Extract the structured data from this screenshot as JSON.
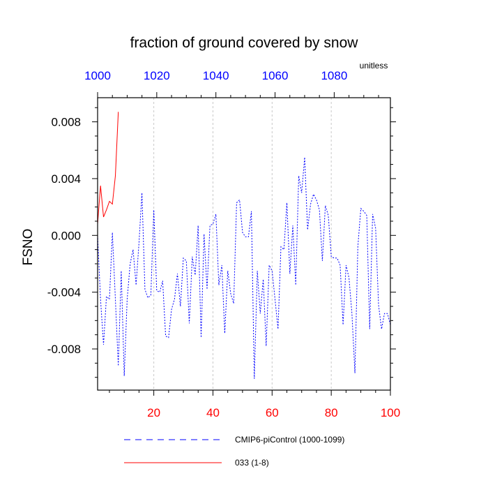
{
  "chart_data": {
    "type": "line",
    "title": "fraction of ground covered by snow",
    "units_label": "unitless",
    "ylabel": "FSNO",
    "xlabel": "",
    "x_bottom": {
      "range": [
        1,
        100
      ],
      "ticks": [
        20,
        40,
        60,
        80,
        100
      ],
      "tick_labels": [
        "20",
        "40",
        "60",
        "80",
        "100"
      ],
      "color": "#ff0000"
    },
    "x_top": {
      "range": [
        1000,
        1099
      ],
      "ticks": [
        1000,
        1020,
        1040,
        1060,
        1080
      ],
      "tick_labels": [
        "1000",
        "1020",
        "1040",
        "1060",
        "1080"
      ],
      "color": "#0000ff"
    },
    "y": {
      "range": [
        -0.0109,
        0.0097
      ],
      "ticks": [
        -0.008,
        -0.004,
        0.0,
        0.004,
        0.008
      ],
      "tick_labels": [
        "-0.008",
        "-0.004",
        "0.000",
        "0.004",
        "0.008"
      ]
    },
    "grid": "vertical dashed at bottom ticks",
    "legend_position": "bottom",
    "series": [
      {
        "name": "CMIP6-piControl (1000-1099)",
        "color": "#0000ff",
        "style": "dashed",
        "x": [
          1,
          2,
          3,
          4,
          5,
          6,
          7,
          8,
          9,
          10,
          11,
          12,
          13,
          14,
          15,
          16,
          17,
          18,
          19,
          20,
          21,
          22,
          23,
          24,
          25,
          26,
          27,
          28,
          29,
          30,
          31,
          32,
          33,
          34,
          35,
          36,
          37,
          38,
          39,
          40,
          41,
          42,
          43,
          44,
          45,
          46,
          47,
          48,
          49,
          50,
          51,
          52,
          53,
          54,
          55,
          56,
          57,
          58,
          59,
          60,
          61,
          62,
          63,
          64,
          65,
          66,
          67,
          68,
          69,
          70,
          71,
          72,
          73,
          74,
          75,
          76,
          77,
          78,
          79,
          80,
          81,
          82,
          83,
          84,
          85,
          86,
          87,
          88,
          89,
          90,
          91,
          92,
          93,
          94,
          95,
          96,
          97,
          98,
          99,
          100
        ],
        "values": [
          0.0,
          -0.0045,
          -0.0077,
          -0.0043,
          -0.0045,
          0.0002,
          -0.0045,
          -0.0092,
          -0.0025,
          -0.0099,
          -0.0045,
          -0.002,
          -0.001,
          -0.0035,
          -0.0005,
          0.003,
          -0.0038,
          -0.0044,
          -0.0042,
          0.0018,
          -0.0039,
          -0.004,
          -0.0032,
          -0.0071,
          -0.0072,
          -0.0052,
          -0.0045,
          -0.0027,
          -0.005,
          -0.0016,
          -0.0018,
          -0.0062,
          -0.0015,
          -0.0028,
          0.0007,
          -0.0072,
          0.0001,
          -0.0038,
          0.0007,
          0.0008,
          0.0015,
          -0.0035,
          -0.0021,
          -0.0069,
          -0.0025,
          -0.0041,
          -0.0048,
          0.0023,
          0.0025,
          0.0002,
          -0.0001,
          -0.0001,
          0.0017,
          -0.0101,
          -0.0025,
          -0.0055,
          -0.0031,
          -0.0078,
          -0.0021,
          -0.0025,
          -0.0045,
          -0.0066,
          -0.0008,
          -0.001,
          0.0023,
          -0.0027,
          0.0007,
          -0.0035,
          0.0042,
          0.003,
          0.0055,
          0.0004,
          0.0022,
          0.0029,
          0.0025,
          0.0018,
          -0.0018,
          0.0021,
          0.0014,
          -0.0015,
          -0.0016,
          -0.0016,
          -0.0021,
          -0.0063,
          -0.0021,
          -0.003,
          -0.0055,
          -0.0097,
          -0.0008,
          0.0019,
          0.0017,
          0.0014,
          -0.0066,
          0.0015,
          0.0005,
          -0.0049,
          -0.0066,
          -0.0055,
          -0.0055,
          -0.0063
        ]
      },
      {
        "name": "033 (1-8)",
        "color": "#ff0000",
        "style": "solid",
        "x": [
          1,
          2,
          3,
          4,
          5,
          6,
          7,
          8
        ],
        "values": [
          0.0008,
          0.0035,
          0.0013,
          0.0018,
          0.0024,
          0.0022,
          0.0042,
          0.0087
        ]
      }
    ]
  }
}
